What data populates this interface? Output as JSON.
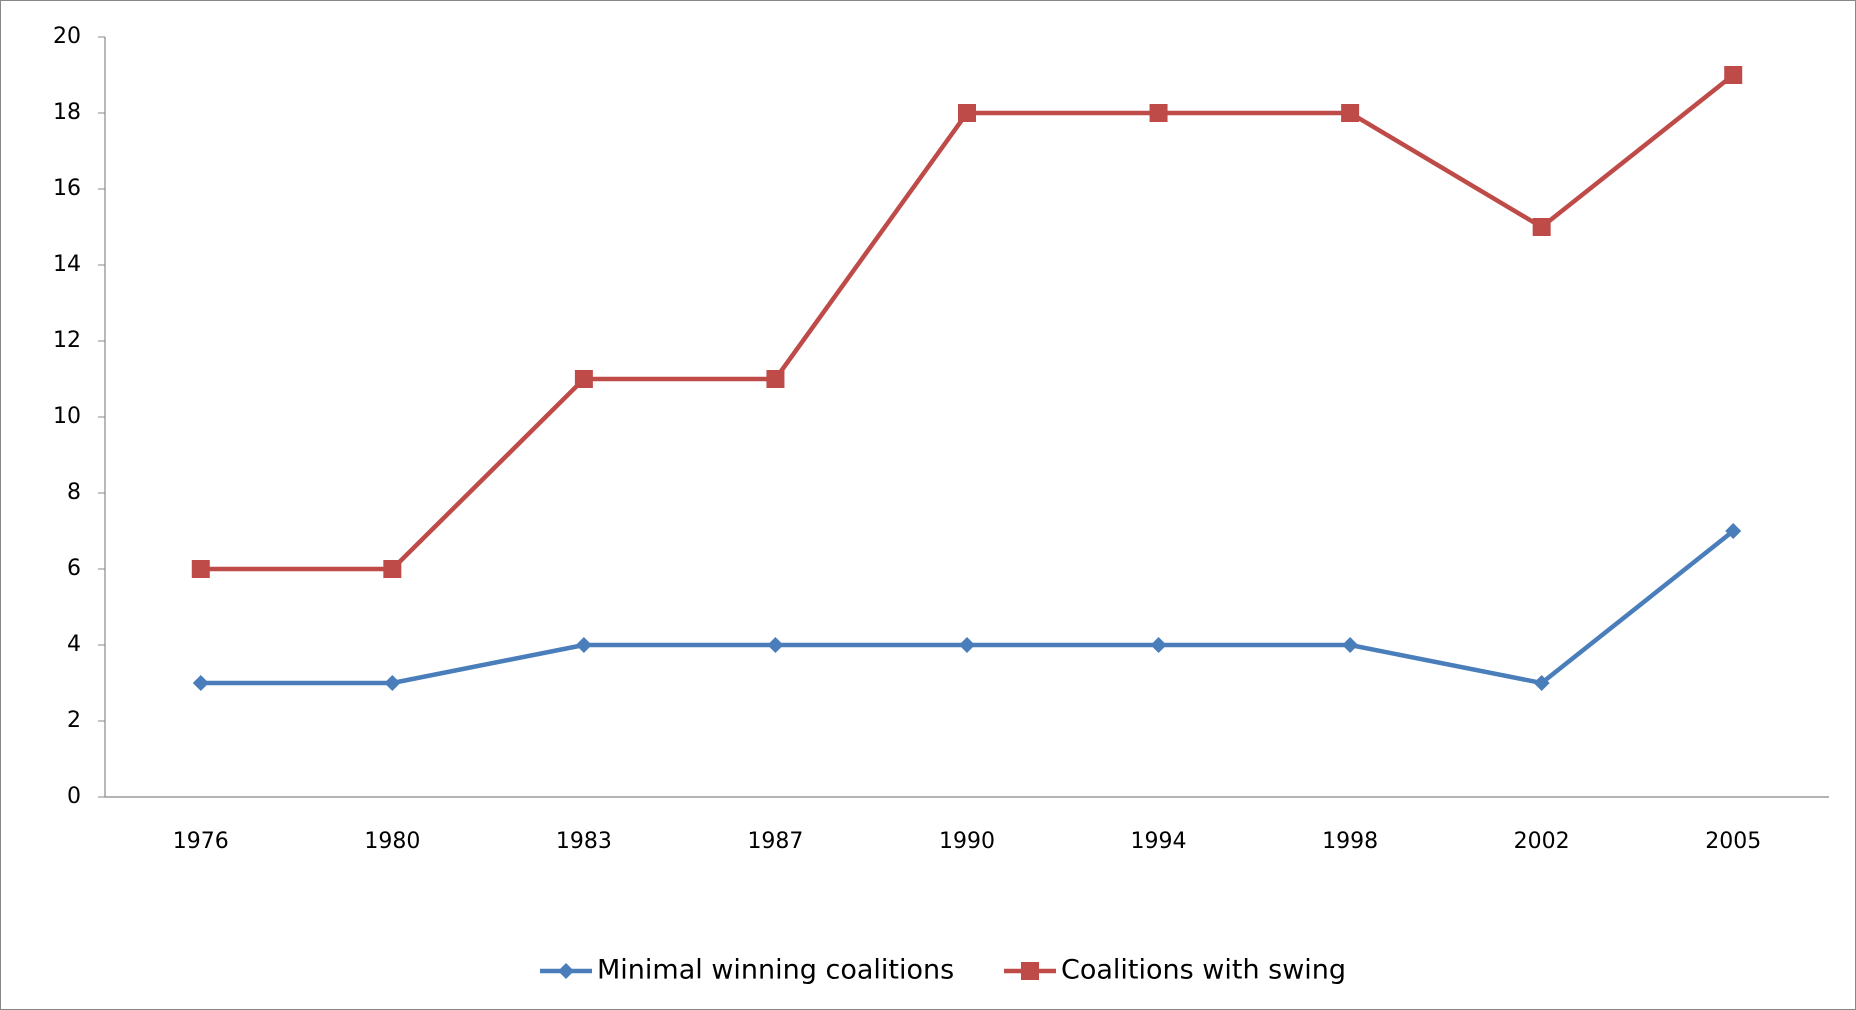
{
  "chart_data": {
    "type": "line",
    "categories": [
      "1976",
      "1980",
      "1983",
      "1987",
      "1990",
      "1994",
      "1998",
      "2002",
      "2005"
    ],
    "series": [
      {
        "name": "Minimal winning coalitions",
        "color": "#4a7ebb",
        "marker": "diamond",
        "values": [
          3,
          3,
          4,
          4,
          4,
          4,
          4,
          3,
          7
        ]
      },
      {
        "name": "Coalitions with swing",
        "color": "#be4b48",
        "marker": "square",
        "values": [
          6,
          6,
          11,
          11,
          18,
          18,
          18,
          15,
          19
        ]
      }
    ],
    "ylim": [
      0,
      20
    ],
    "yticks": [
      0,
      2,
      4,
      6,
      8,
      10,
      12,
      14,
      16,
      18,
      20
    ],
    "grid": false,
    "legend": "bottom"
  }
}
